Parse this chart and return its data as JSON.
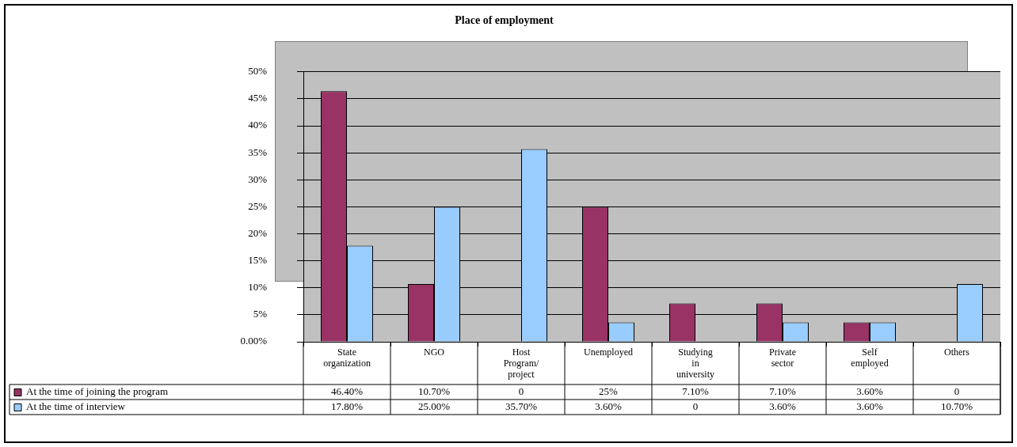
{
  "chart_data": {
    "type": "bar",
    "title": "Place of employment",
    "categories": [
      "State organization",
      "NGO",
      "Host Program/ project",
      "Unemployed",
      "Studying in university",
      "Private sector",
      "Self employed",
      "Others"
    ],
    "series": [
      {
        "name": "At the time of joining the program",
        "color": "#993366",
        "values": [
          46.4,
          10.7,
          0,
          25,
          7.1,
          7.1,
          3.6,
          0
        ],
        "value_labels": [
          "46.40%",
          "10.70%",
          "0",
          "25%",
          "7.10%",
          "7.10%",
          "3.60%",
          "0"
        ]
      },
      {
        "name": "At the time of interview",
        "color": "#99ccff",
        "values": [
          17.8,
          25,
          35.7,
          3.6,
          0,
          3.6,
          3.6,
          10.7
        ],
        "value_labels": [
          "17.80%",
          "25.00%",
          "35.70%",
          "3.60%",
          "0",
          "3.60%",
          "3.60%",
          "10.70%"
        ]
      }
    ],
    "ylim": [
      0,
      50
    ],
    "yticks": [
      {
        "value": 0,
        "label": "0.00%"
      },
      {
        "value": 5,
        "label": "5%"
      },
      {
        "value": 10,
        "label": "10%"
      },
      {
        "value": 15,
        "label": "15%"
      },
      {
        "value": 20,
        "label": "20%"
      },
      {
        "value": 25,
        "label": "25%"
      },
      {
        "value": 30,
        "label": "30%"
      },
      {
        "value": 35,
        "label": "35%"
      },
      {
        "value": 40,
        "label": "40%"
      },
      {
        "value": 45,
        "label": "45%"
      },
      {
        "value": 50,
        "label": "50%"
      }
    ],
    "grid": "y",
    "legend": "bottom"
  }
}
